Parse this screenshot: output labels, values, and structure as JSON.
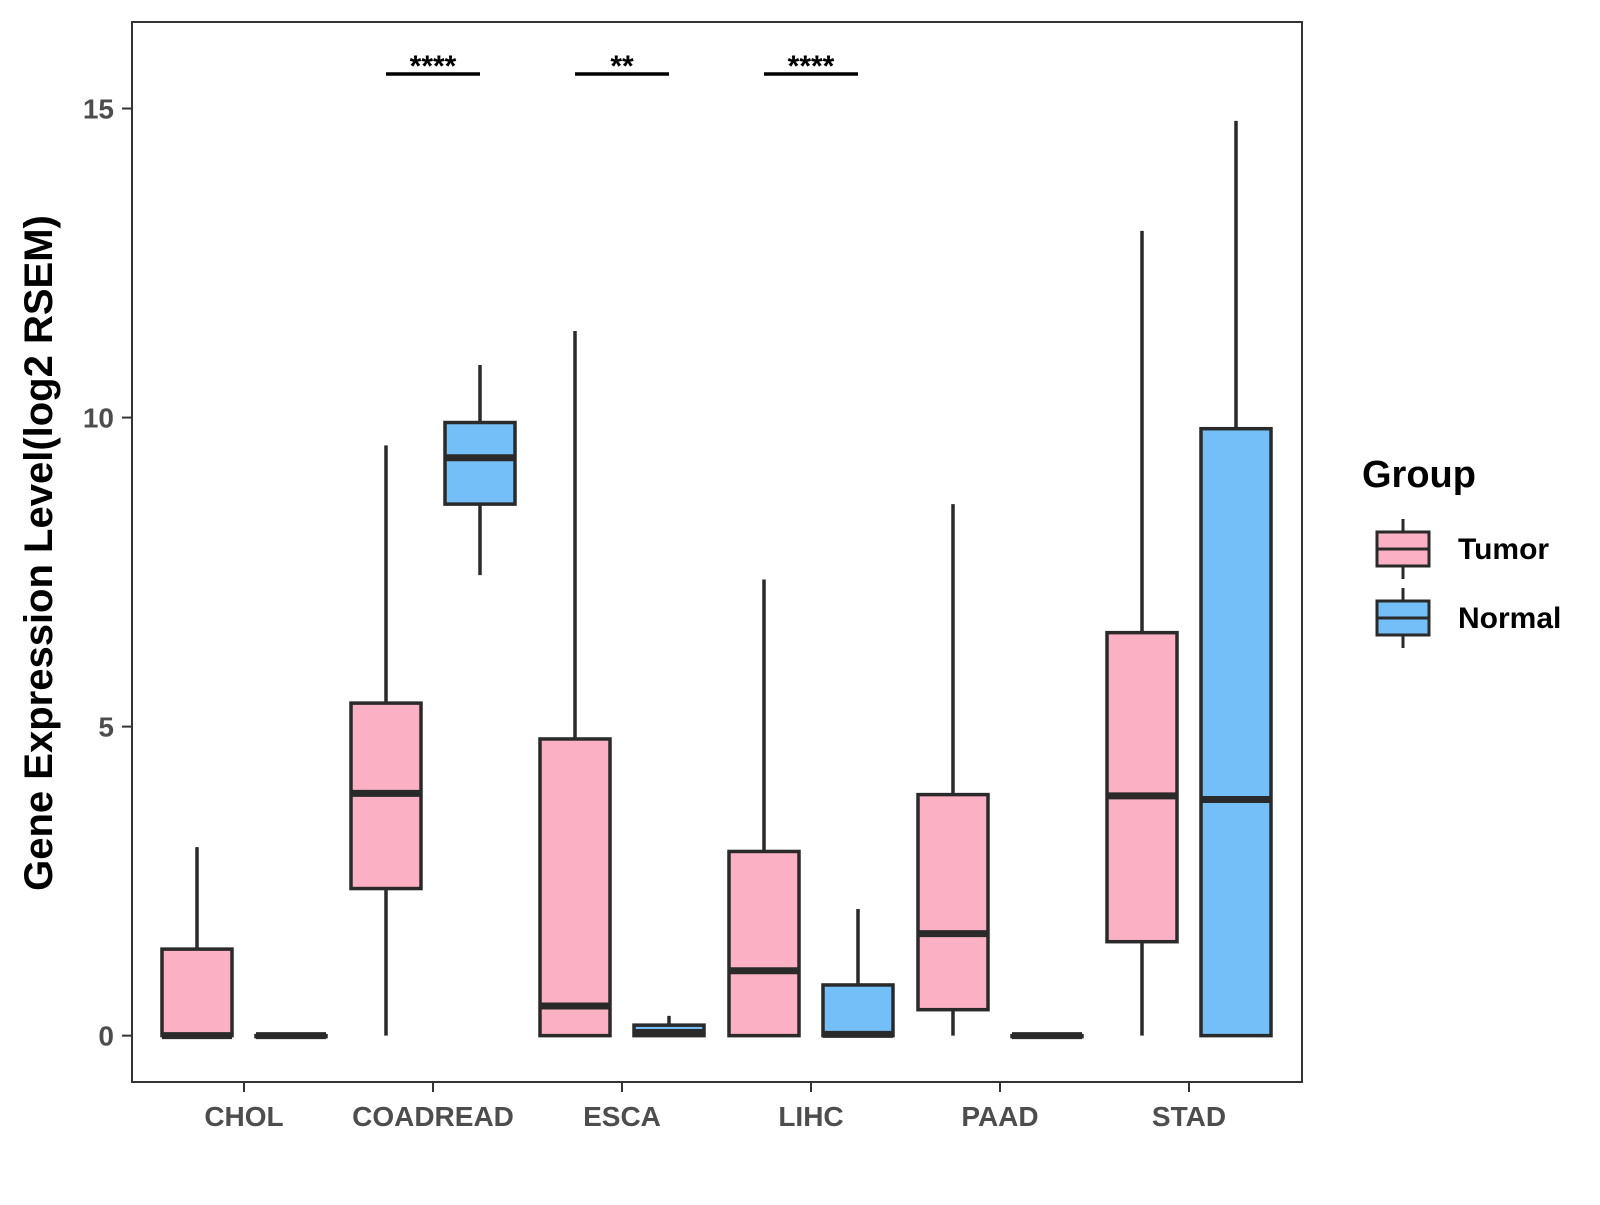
{
  "chart_data": {
    "type": "boxplot",
    "title": "",
    "xlabel": "",
    "ylabel": "Gene Expression Level(log2 RSEM)",
    "ylim": [
      -0.75,
      16.4
    ],
    "yticks": [
      0,
      5,
      10,
      15
    ],
    "ytick_labels": [
      "0",
      "5",
      "10",
      "15"
    ],
    "grid": false,
    "categories": [
      "CHOL",
      "COADREAD",
      "ESCA",
      "LIHC",
      "PAAD",
      "STAD"
    ],
    "legend": {
      "title": "Group",
      "position": "right",
      "entries": [
        {
          "name": "Tumor",
          "color": "#FBB1C3"
        },
        {
          "name": "Normal",
          "color": "#74BFF7"
        }
      ]
    },
    "series": [
      {
        "name": "Tumor",
        "color": "#FBB1C3",
        "boxes": [
          {
            "min": 0.0,
            "q1": 0.0,
            "median": 0.0,
            "q3": 1.4,
            "max": 3.05
          },
          {
            "min": 0.0,
            "q1": 2.38,
            "median": 3.92,
            "q3": 5.38,
            "max": 9.55
          },
          {
            "min": 0.0,
            "q1": 0.0,
            "median": 0.48,
            "q3": 4.8,
            "max": 11.4
          },
          {
            "min": 0.0,
            "q1": 0.0,
            "median": 1.05,
            "q3": 2.98,
            "max": 7.38
          },
          {
            "min": 0.0,
            "q1": 0.42,
            "median": 1.65,
            "q3": 3.9,
            "max": 8.6
          },
          {
            "min": 0.0,
            "q1": 1.52,
            "median": 3.88,
            "q3": 6.52,
            "max": 13.02
          }
        ]
      },
      {
        "name": "Normal",
        "color": "#74BFF7",
        "boxes": [
          {
            "min": 0.0,
            "q1": 0.0,
            "median": 0.0,
            "q3": 0.0,
            "max": 0.0
          },
          {
            "min": 7.45,
            "q1": 8.6,
            "median": 9.35,
            "q3": 9.92,
            "max": 10.85
          },
          {
            "min": 0.0,
            "q1": 0.0,
            "median": 0.05,
            "q3": 0.17,
            "max": 0.32
          },
          {
            "min": 0.0,
            "q1": 0.0,
            "median": 0.02,
            "q3": 0.82,
            "max": 2.05
          },
          {
            "min": 0.0,
            "q1": 0.0,
            "median": 0.0,
            "q3": 0.0,
            "max": 0.0
          },
          {
            "min": 0.0,
            "q1": 0.0,
            "median": 3.82,
            "q3": 9.82,
            "max": 14.8
          }
        ]
      }
    ],
    "significance": [
      {
        "category": "COADREAD",
        "label": "****"
      },
      {
        "category": "ESCA",
        "label": "**"
      },
      {
        "category": "LIHC",
        "label": "****"
      }
    ]
  }
}
